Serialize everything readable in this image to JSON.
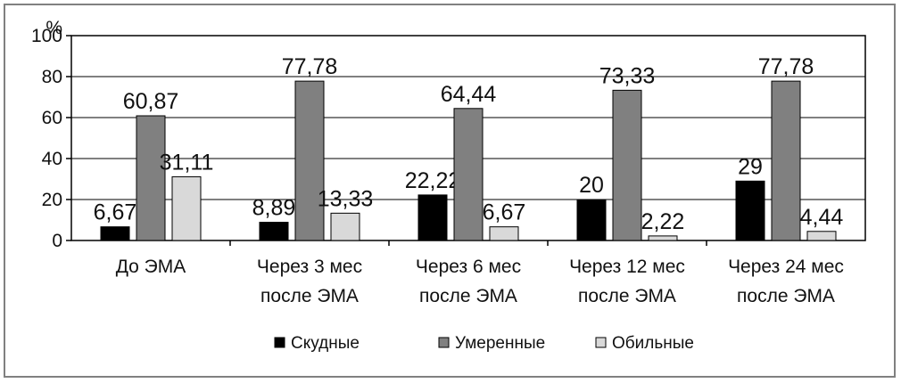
{
  "chart_data": {
    "type": "bar",
    "ylabel": "%",
    "ylim": [
      0,
      100
    ],
    "yticks": [
      "0",
      "20",
      "40",
      "60",
      "80",
      "100"
    ],
    "grid": true,
    "legend_position": "bottom",
    "categories": [
      [
        "До ЭМА"
      ],
      [
        "Через 3 мес",
        "после ЭМА"
      ],
      [
        "Через 6 мес",
        "после ЭМА"
      ],
      [
        "Через 12 мес",
        "после ЭМА"
      ],
      [
        "Через 24 мес",
        "после ЭМА"
      ]
    ],
    "series": [
      {
        "name": "Скудные",
        "color": "#000000",
        "values": [
          6.67,
          8.89,
          22.22,
          20,
          29
        ],
        "labels": [
          "6,67",
          "8,89",
          "22,22",
          "20",
          "29"
        ]
      },
      {
        "name": "Умеренные",
        "color": "#808080",
        "values": [
          60.87,
          77.78,
          64.44,
          73.33,
          77.78
        ],
        "labels": [
          "60,87",
          "77,78",
          "64,44",
          "73,33",
          "77,78"
        ]
      },
      {
        "name": "Обильные",
        "color": "#d9d9d9",
        "values": [
          31.11,
          13.33,
          6.67,
          2.22,
          4.44
        ],
        "labels": [
          "31,11",
          "13,33",
          "6,67",
          "2,22",
          "4,44"
        ]
      }
    ]
  }
}
